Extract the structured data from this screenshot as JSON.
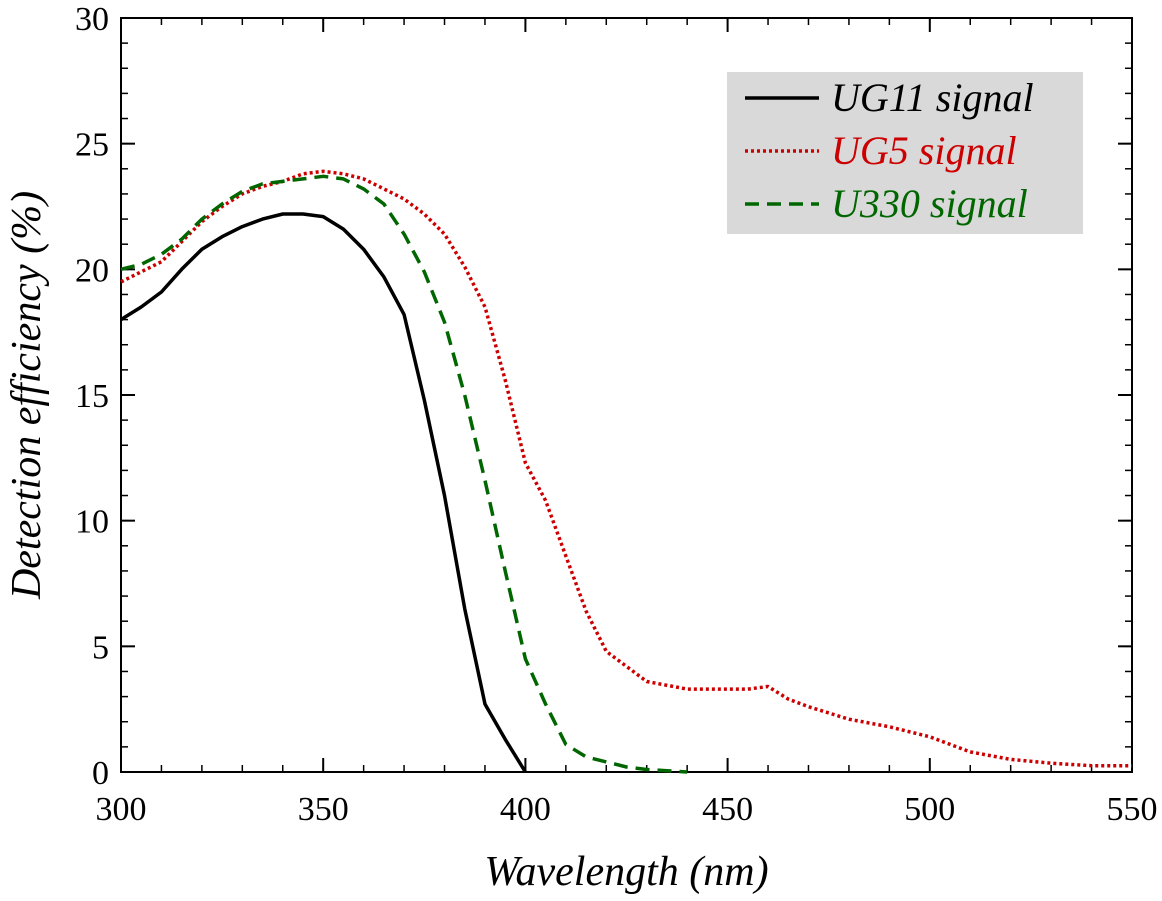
{
  "chart_data": {
    "type": "line",
    "xlabel": "Wavelength (nm)",
    "ylabel": "Detection efficiency (%)",
    "xlim": [
      300,
      550
    ],
    "ylim": [
      0,
      30
    ],
    "x_ticks": [
      300,
      350,
      400,
      450,
      500,
      550
    ],
    "y_ticks": [
      0,
      5,
      10,
      15,
      20,
      25,
      30
    ],
    "x_minor_step": 10,
    "y_minor_step": 1,
    "grid": false,
    "legend_position": "top-right",
    "legend_background": "#d9d9d9",
    "series": [
      {
        "name": "UG11 signal",
        "color": "#000000",
        "dash": "solid",
        "x": [
          300,
          305,
          310,
          315,
          320,
          325,
          330,
          335,
          340,
          345,
          350,
          355,
          360,
          365,
          370,
          375,
          380,
          385,
          390,
          395,
          400
        ],
        "y": [
          18.0,
          18.5,
          19.1,
          20.0,
          20.8,
          21.3,
          21.7,
          22.0,
          22.2,
          22.2,
          22.1,
          21.6,
          20.8,
          19.7,
          18.2,
          14.8,
          11.0,
          6.5,
          2.7,
          1.3,
          0.0
        ]
      },
      {
        "name": "UG5 signal",
        "color": "#cc0000",
        "dash": "dotted",
        "x": [
          300,
          305,
          310,
          315,
          320,
          325,
          330,
          335,
          340,
          345,
          350,
          355,
          360,
          365,
          370,
          375,
          380,
          385,
          390,
          395,
          400,
          405,
          410,
          415,
          420,
          425,
          430,
          440,
          450,
          455,
          460,
          465,
          470,
          480,
          490,
          500,
          510,
          520,
          530,
          540,
          550
        ],
        "y": [
          19.5,
          19.9,
          20.3,
          21.1,
          21.9,
          22.5,
          23.0,
          23.3,
          23.5,
          23.8,
          23.9,
          23.8,
          23.6,
          23.2,
          22.8,
          22.2,
          21.4,
          20.1,
          18.5,
          15.6,
          12.3,
          10.8,
          8.6,
          6.4,
          4.8,
          4.2,
          3.6,
          3.3,
          3.3,
          3.3,
          3.4,
          2.9,
          2.6,
          2.1,
          1.8,
          1.4,
          0.8,
          0.5,
          0.35,
          0.25,
          0.25
        ]
      },
      {
        "name": "U330 signal",
        "color": "#006600",
        "dash": "dashed",
        "x": [
          300,
          305,
          310,
          315,
          320,
          325,
          330,
          335,
          340,
          345,
          350,
          355,
          360,
          365,
          370,
          375,
          380,
          385,
          390,
          395,
          400,
          405,
          410,
          415,
          420,
          425,
          430,
          435,
          440
        ],
        "y": [
          20.0,
          20.2,
          20.6,
          21.2,
          22.0,
          22.6,
          23.1,
          23.4,
          23.5,
          23.6,
          23.7,
          23.6,
          23.2,
          22.6,
          21.4,
          19.9,
          17.9,
          15.0,
          11.6,
          8.0,
          4.5,
          2.7,
          1.1,
          0.6,
          0.4,
          0.2,
          0.1,
          0.05,
          0.0
        ]
      }
    ]
  }
}
